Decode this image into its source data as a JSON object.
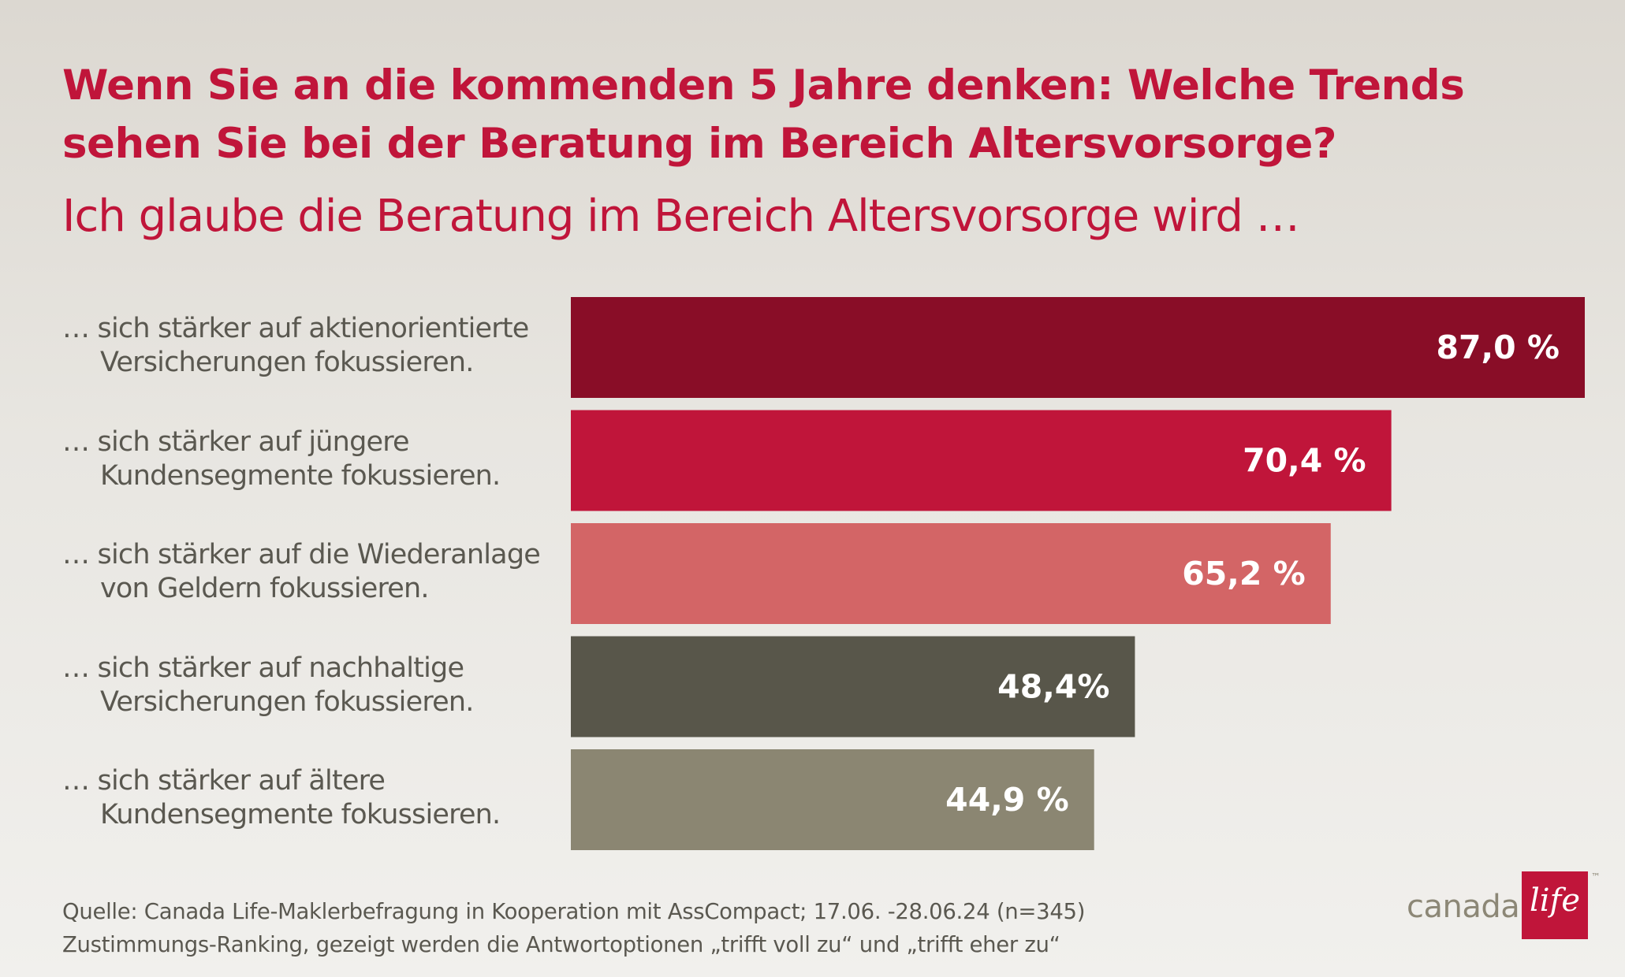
{
  "title_line1": "Wenn Sie an die kommenden 5 Jahre denken: Welche Trends",
  "title_line2": "sehen Sie bei der Beratung im Bereich Altersvorsorge?",
  "subtitle": "Ich glaube die Beratung im Bereich Altersvorsorge wird …",
  "chart_data": {
    "type": "bar",
    "orientation": "horizontal",
    "title": "Wenn Sie an die kommenden 5 Jahre denken: Welche Trends sehen Sie bei der Beratung im Bereich Altersvorsorge?",
    "subtitle": "Ich glaube die Beratung im Bereich Altersvorsorge wird …",
    "xlim": [
      0,
      87
    ],
    "grid": false,
    "legend": "none",
    "categories": [
      "… sich stärker auf aktienorientierte Versicherungen fokussieren.",
      "… sich stärker auf jüngere Kundensegmente fokussieren.",
      "… sich stärker auf die Wiederanlage von Geldern fokussieren.",
      "… sich stärker auf nachhaltige Versicherungen fokussieren.",
      "… sich stärker auf ältere Kundensegmente fokussieren."
    ],
    "label_lines": [
      [
        "… sich stärker auf aktienorientierte",
        "Versicherungen fokussieren."
      ],
      [
        "… sich stärker auf jüngere",
        "Kundensegmente fokussieren."
      ],
      [
        "… sich stärker auf die Wiederanlage",
        "von Geldern fokussieren."
      ],
      [
        "… sich stärker auf nachhaltige",
        "Versicherungen fokussieren."
      ],
      [
        "… sich stärker auf ältere",
        "Kundensegmente fokussieren."
      ]
    ],
    "values": [
      87.0,
      70.4,
      65.2,
      48.4,
      44.9
    ],
    "value_labels": [
      "87,0 %",
      "70,4 %",
      "65,2 %",
      "48,4%",
      "44,9 %"
    ],
    "colors": [
      "#890d27",
      "#c0153a",
      "#d36566",
      "#58564a",
      "#8b8672"
    ]
  },
  "source_line1": "Quelle: Canada Life-Maklerbefragung in Kooperation mit AssCompact; 17.06. -28.06.24 (n=345)",
  "source_line2": "Zustimmungs-Ranking, gezeigt werden die Antwortoptionen „trifft voll zu“ und „trifft eher zu“",
  "logo": {
    "word": "canada",
    "box_word": "life",
    "tm": "™"
  }
}
